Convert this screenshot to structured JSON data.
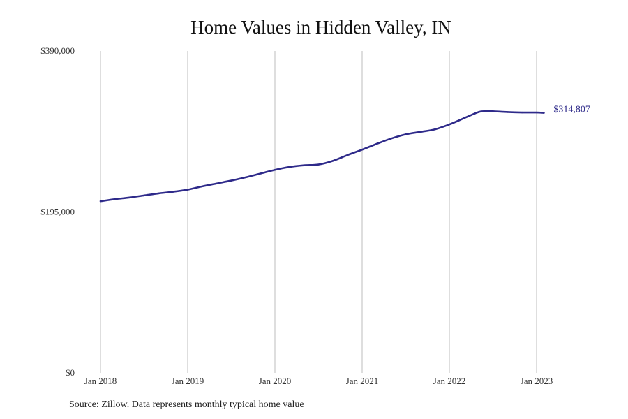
{
  "chart_data": {
    "type": "line",
    "title": "Home Values in Hidden Valley, IN",
    "source": "Source: Zillow. Data represents monthly typical home value",
    "ylim": [
      0,
      390000
    ],
    "yticks": [
      {
        "value": 390000,
        "label": "$390,000"
      },
      {
        "value": 195000,
        "label": "$195,000"
      },
      {
        "value": 0,
        "label": "$0"
      }
    ],
    "xticks": [
      {
        "value": 2018.0,
        "label": "Jan 2018"
      },
      {
        "value": 2019.0,
        "label": "Jan 2019"
      },
      {
        "value": 2020.0,
        "label": "Jan 2020"
      },
      {
        "value": 2021.0,
        "label": "Jan 2021"
      },
      {
        "value": 2022.0,
        "label": "Jan 2022"
      },
      {
        "value": 2023.0,
        "label": "Jan 2023"
      }
    ],
    "xlim": [
      2018.0,
      2023.0
    ],
    "grid": "vertical",
    "line_color": "#2e2a8a",
    "end_label": "$314,807",
    "series": [
      {
        "x": [
          "2018-01",
          "2018-03",
          "2018-05",
          "2018-07",
          "2018-09",
          "2018-11",
          "2019-01",
          "2019-03",
          "2019-05",
          "2019-07",
          "2019-09",
          "2019-11",
          "2020-01",
          "2020-03",
          "2020-05",
          "2020-07",
          "2020-09",
          "2020-11",
          "2021-01",
          "2021-03",
          "2021-05",
          "2021-07",
          "2021-09",
          "2021-11",
          "2022-01",
          "2022-03",
          "2022-05",
          "2022-06",
          "2022-07",
          "2022-09",
          "2022-11",
          "2023-01",
          "2023-02"
        ],
        "values": [
          208000,
          210500,
          212500,
          215000,
          217500,
          219500,
          222000,
          226000,
          229500,
          233000,
          237000,
          241500,
          246000,
          249500,
          251500,
          252500,
          257000,
          264000,
          270500,
          277500,
          284000,
          289000,
          292000,
          295000,
          301000,
          308500,
          316000,
          317000,
          317000,
          316000,
          315500,
          315500,
          315000
        ]
      }
    ]
  }
}
